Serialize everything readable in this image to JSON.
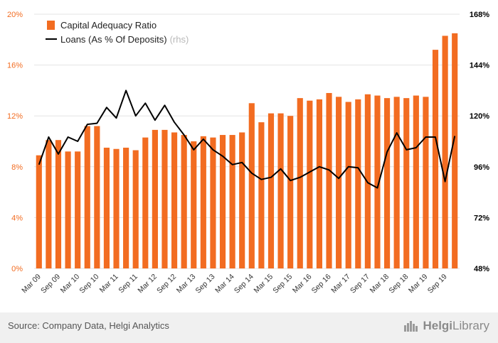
{
  "colors": {
    "bar": "#f26c21",
    "line": "#000000",
    "grid": "#e3e3e3",
    "axis_left": "#f26c21",
    "axis_right": "#000000"
  },
  "legend": {
    "bar_label": "Capital Adequacy Ratio",
    "line_label": "Loans (As % Of Deposits)",
    "line_suffix": "(rhs)"
  },
  "footer": {
    "source": "Source: Company Data, Helgi Analytics",
    "brand_part1": "Helgi",
    "brand_part2": "Library",
    "brand_icon": "helgi-library-logo-icon"
  },
  "chart_data": {
    "type": "bar+line",
    "categories": [
      "Mar 09",
      "Jun 09",
      "Sep 09",
      "Dec 09",
      "Mar 10",
      "Jun 10",
      "Sep 10",
      "Dec 10",
      "Mar 11",
      "Jun 11",
      "Sep 11",
      "Dec 11",
      "Mar 12",
      "Jun 12",
      "Sep 12",
      "Dec 12",
      "Mar 13",
      "Jun 13",
      "Sep 13",
      "Dec 13",
      "Mar 14",
      "Jun 14",
      "Sep 14",
      "Dec 14",
      "Mar 15",
      "Jun 15",
      "Sep 15",
      "Dec 15",
      "Mar 16",
      "Jun 16",
      "Sep 16",
      "Dec 16",
      "Mar 17",
      "Jun 17",
      "Sep 17",
      "Dec 17",
      "Mar 18",
      "Jun 18",
      "Sep 18",
      "Dec 18",
      "Mar 19",
      "Jun 19",
      "Sep 19",
      "Dec 19"
    ],
    "x_tick_labels": [
      "Mar 09",
      "Sep 09",
      "Mar 10",
      "Sep 10",
      "Mar 11",
      "Sep 11",
      "Mar 12",
      "Sep 12",
      "Mar 13",
      "Sep 13",
      "Mar 14",
      "Sep 14",
      "Mar 15",
      "Sep 15",
      "Mar 16",
      "Sep 16",
      "Mar 17",
      "Sep 17",
      "Mar 18",
      "Sep 18",
      "Mar 19",
      "Sep 19"
    ],
    "series": [
      {
        "name": "Capital Adequacy Ratio",
        "type": "bar",
        "axis": "left",
        "unit": "%",
        "values": [
          8.9,
          10.1,
          10.1,
          9.2,
          9.2,
          11.2,
          11.2,
          9.5,
          9.4,
          9.5,
          9.3,
          10.3,
          10.9,
          10.9,
          10.7,
          10.5,
          10.0,
          10.4,
          10.3,
          10.5,
          10.5,
          10.7,
          13.0,
          11.5,
          12.2,
          12.2,
          12.0,
          13.4,
          13.2,
          13.3,
          13.8,
          13.5,
          13.1,
          13.3,
          13.7,
          13.6,
          13.4,
          13.5,
          13.4,
          13.6,
          13.5,
          17.2,
          18.3,
          18.5
        ]
      },
      {
        "name": "Loans (As % Of Deposits)",
        "type": "line",
        "axis": "right",
        "unit": "%",
        "values": [
          97,
          110,
          102,
          110,
          108,
          116,
          116.5,
          124,
          119,
          132,
          120,
          126,
          118,
          125,
          117,
          111,
          104,
          109,
          104,
          101,
          97,
          98,
          93,
          90,
          91,
          95,
          89.5,
          91,
          93.5,
          96,
          94.5,
          90.5,
          96,
          95.5,
          88.5,
          86,
          103,
          112,
          104,
          105,
          110,
          110,
          89,
          110.5
        ]
      }
    ],
    "y_left": {
      "min": 0,
      "max": 20,
      "ticks": [
        "0%",
        "4%",
        "8%",
        "12%",
        "16%",
        "20%"
      ]
    },
    "y_right": {
      "min": 48,
      "max": 168,
      "ticks": [
        "48%",
        "72%",
        "96%",
        "120%",
        "144%",
        "168%"
      ]
    },
    "grid": true,
    "legend_position": "top-left"
  }
}
